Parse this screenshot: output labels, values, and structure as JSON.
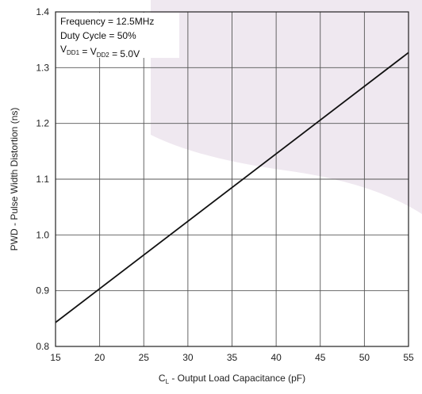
{
  "chart_data": {
    "type": "line",
    "title": "",
    "xlabel": {
      "main": "C",
      "sub": "L",
      "rest": " - Output Load Capacitance (pF)"
    },
    "ylabel": "PWD - Pulse Width Distortion (ns)",
    "xlim": [
      15,
      55
    ],
    "ylim": [
      0.8,
      1.4
    ],
    "x_ticks": [
      15,
      20,
      25,
      30,
      35,
      40,
      45,
      50,
      55
    ],
    "y_ticks": [
      0.8,
      0.9,
      1.0,
      1.1,
      1.2,
      1.3,
      1.4
    ],
    "y_tick_labels": [
      "0.8",
      "0.9",
      "1.0",
      "1.1",
      "1.2",
      "1.3",
      "1.4"
    ],
    "grid": true,
    "series": [
      {
        "x": [
          15,
          55
        ],
        "values": [
          0.843,
          1.327
        ]
      }
    ],
    "annotations": {
      "line1": "Frequency = 12.5MHz",
      "line2": "Duty Cycle = 50%",
      "line3": [
        {
          "t": "V",
          "sub": false
        },
        {
          "t": "DD1",
          "sub": true
        },
        {
          "t": " = V",
          "sub": false
        },
        {
          "t": "DD2",
          "sub": true
        },
        {
          "t": " = 5.0V",
          "sub": false
        }
      ]
    },
    "colors": {
      "line": "#111111",
      "grid": "#555555",
      "background_shape": "#efe8f0"
    }
  }
}
